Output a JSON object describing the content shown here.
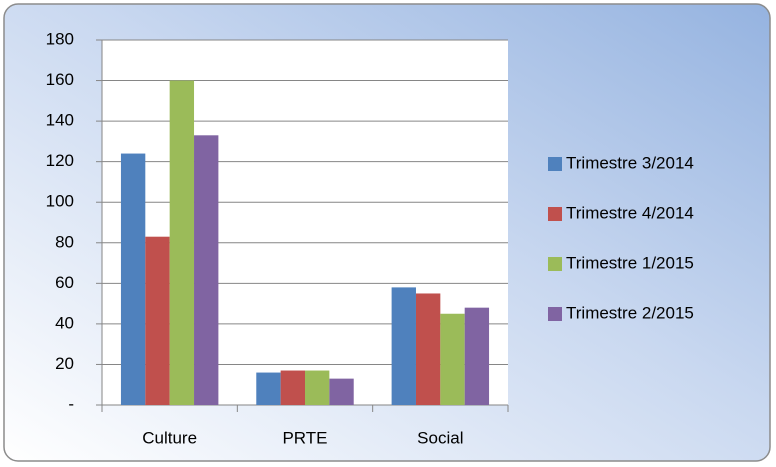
{
  "chart_data": {
    "type": "bar",
    "categories": [
      "Culture",
      "PRTE",
      "Social"
    ],
    "series": [
      {
        "name": "Trimestre 3/2014",
        "color": "#4f81bd",
        "values": [
          124,
          16,
          58
        ]
      },
      {
        "name": "Trimestre 4/2014",
        "color": "#c0504d",
        "values": [
          83,
          17,
          55
        ]
      },
      {
        "name": "Trimestre 1/2015",
        "color": "#9bbb59",
        "values": [
          160,
          17,
          45
        ]
      },
      {
        "name": "Trimestre 2/2015",
        "color": "#8064a2",
        "values": [
          133,
          13,
          48
        ]
      }
    ],
    "ylim": [
      0,
      180
    ],
    "yticks": [
      {
        "value": 0,
        "label": "-"
      },
      20,
      40,
      60,
      80,
      100,
      120,
      140,
      160,
      180
    ],
    "grid": true,
    "legend": "right"
  }
}
